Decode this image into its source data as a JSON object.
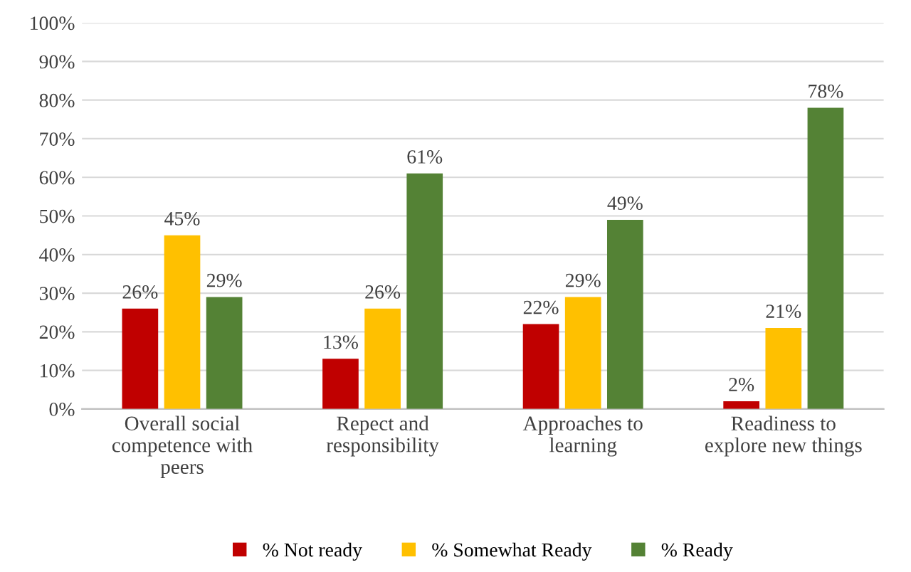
{
  "chart_data": {
    "type": "bar",
    "categories": [
      "Overall social\ncompetence with\npeers",
      "Repect and\nresponsibility",
      "Approaches to\nlearning",
      "Readiness to\nexplore new things"
    ],
    "series": [
      {
        "name": "% Not ready",
        "color": "#c00000",
        "values": [
          26,
          13,
          22,
          2
        ],
        "value_labels": [
          "26%",
          "13%",
          "22%",
          "2%"
        ]
      },
      {
        "name": "% Somewhat Ready",
        "color": "#ffc000",
        "values": [
          45,
          26,
          29,
          21
        ],
        "value_labels": [
          "45%",
          "26%",
          "29%",
          "21%"
        ]
      },
      {
        "name": "% Ready",
        "color": "#548235",
        "values": [
          29,
          61,
          49,
          78
        ],
        "value_labels": [
          "29%",
          "61%",
          "49%",
          "78%"
        ]
      }
    ],
    "ylim": [
      0,
      100
    ],
    "yticks": [
      {
        "value": 0,
        "label": "0%"
      },
      {
        "value": 10,
        "label": "10%"
      },
      {
        "value": 20,
        "label": "20%"
      },
      {
        "value": 30,
        "label": "30%"
      },
      {
        "value": 40,
        "label": "40%"
      },
      {
        "value": 50,
        "label": "50%"
      },
      {
        "value": 60,
        "label": "60%"
      },
      {
        "value": 70,
        "label": "70%"
      },
      {
        "value": 80,
        "label": "80%"
      },
      {
        "value": 90,
        "label": "90%"
      },
      {
        "value": 100,
        "label": "100%"
      }
    ],
    "grid": "y",
    "legend": "bottom"
  }
}
